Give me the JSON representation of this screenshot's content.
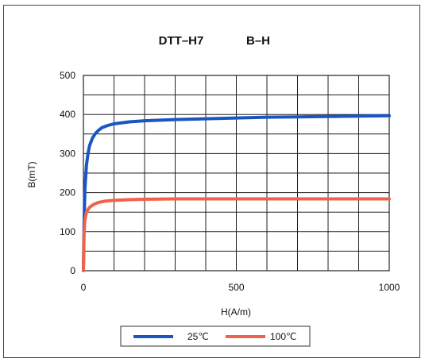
{
  "chart_data": {
    "type": "line",
    "title": "DTT–H7",
    "subtitle": "B–H",
    "xlabel": "H(A/m)",
    "ylabel": "B(mT)",
    "xlim": [
      0,
      1000
    ],
    "ylim": [
      0,
      500
    ],
    "x_ticks": [
      "0",
      "500",
      "1000"
    ],
    "y_ticks": [
      "0",
      "100",
      "200",
      "300",
      "400",
      "500"
    ],
    "grid": true,
    "legend_position": "bottom-center",
    "series": [
      {
        "name": "25℃",
        "color": "#1a56c2",
        "x": [
          0,
          2,
          5,
          10,
          15,
          20,
          30,
          40,
          50,
          60,
          80,
          100,
          150,
          200,
          300,
          400,
          500,
          600,
          700,
          800,
          900,
          1000
        ],
        "y": [
          0,
          120,
          210,
          270,
          300,
          320,
          340,
          352,
          360,
          366,
          372,
          376,
          381,
          384,
          387,
          389,
          391,
          393,
          394,
          395,
          396,
          397
        ]
      },
      {
        "name": "100℃",
        "color": "#f0624a",
        "x": [
          0,
          2,
          5,
          10,
          15,
          20,
          30,
          40,
          50,
          70,
          100,
          150,
          200,
          300,
          400,
          500,
          600,
          700,
          800,
          900,
          1000
        ],
        "y": [
          0,
          95,
          130,
          150,
          157,
          162,
          168,
          172,
          175,
          178,
          180,
          182,
          183,
          184,
          184,
          184,
          184,
          184,
          184,
          184,
          184
        ]
      }
    ]
  }
}
